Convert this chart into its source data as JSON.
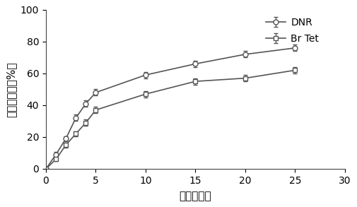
{
  "title": "",
  "xlabel": "时间（天）",
  "ylabel": "药物释放率（%）",
  "xlim": [
    0,
    30
  ],
  "ylim": [
    0,
    100
  ],
  "xticks": [
    0,
    5,
    10,
    15,
    20,
    25,
    30
  ],
  "yticks": [
    0,
    20,
    40,
    60,
    80,
    100
  ],
  "DNR_x": [
    0,
    1,
    2,
    3,
    4,
    5,
    10,
    15,
    20,
    25
  ],
  "DNR_y": [
    0,
    9,
    19,
    32,
    41,
    48,
    59,
    66,
    72,
    76
  ],
  "DNR_err": [
    0,
    1.5,
    1.5,
    2,
    2,
    2,
    2,
    2,
    2,
    2
  ],
  "BrTet_x": [
    0,
    1,
    2,
    3,
    4,
    5,
    10,
    15,
    20,
    25
  ],
  "BrTet_y": [
    0,
    6,
    15,
    22,
    29,
    37,
    47,
    55,
    57,
    62
  ],
  "BrTet_err": [
    0,
    1.0,
    1.5,
    1.5,
    2,
    2,
    2,
    2,
    2,
    2
  ],
  "line_color": "#555555",
  "bg_color": "#ffffff",
  "legend_DNR": "DNR",
  "legend_BrTet": "Br Tet",
  "fontsize_label": 11,
  "fontsize_tick": 10,
  "fontsize_legend": 10
}
